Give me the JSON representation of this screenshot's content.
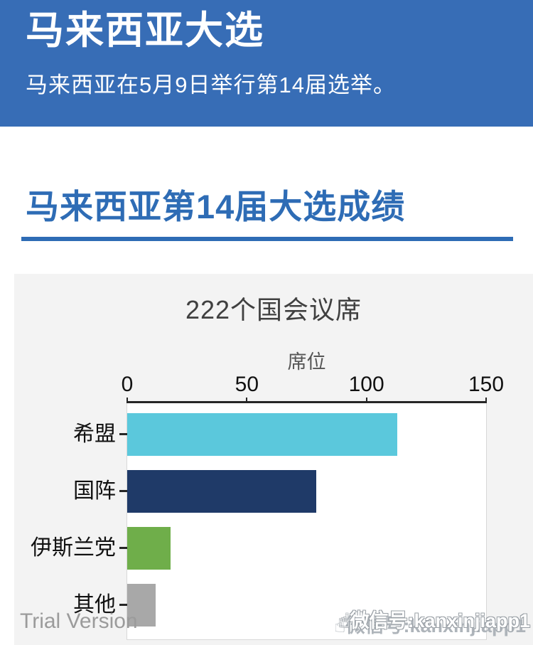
{
  "banner": {
    "title": "马来西亚大选",
    "subtitle": "马来西亚在5月9日举行第14届选举。"
  },
  "results_section": {
    "heading": "马来西亚第14届大选成绩"
  },
  "chart_data": {
    "type": "bar",
    "orientation": "horizontal",
    "title": "222个国会议席",
    "xlabel": "席位",
    "categories": [
      "希盟",
      "国阵",
      "伊斯兰党",
      "其他"
    ],
    "values": [
      113,
      79,
      18,
      12
    ],
    "bar_colors": [
      "#5bc8dc",
      "#1f3a68",
      "#6fae4a",
      "#a8a8a8"
    ],
    "xlim": [
      0,
      150
    ],
    "xticks": [
      0,
      50,
      100,
      150
    ],
    "grid": false,
    "legend": false,
    "total_seats": 222
  },
  "footer": {
    "trial_label": "Trial Version",
    "watermark_text": "微信号:kanxinjiapp1",
    "watermark_icon": "pointing-up-hand"
  },
  "colors": {
    "banner_bg": "#376db6",
    "heading_blue": "#2e6cb5",
    "chart_card_bg": "#f3f3f3"
  }
}
